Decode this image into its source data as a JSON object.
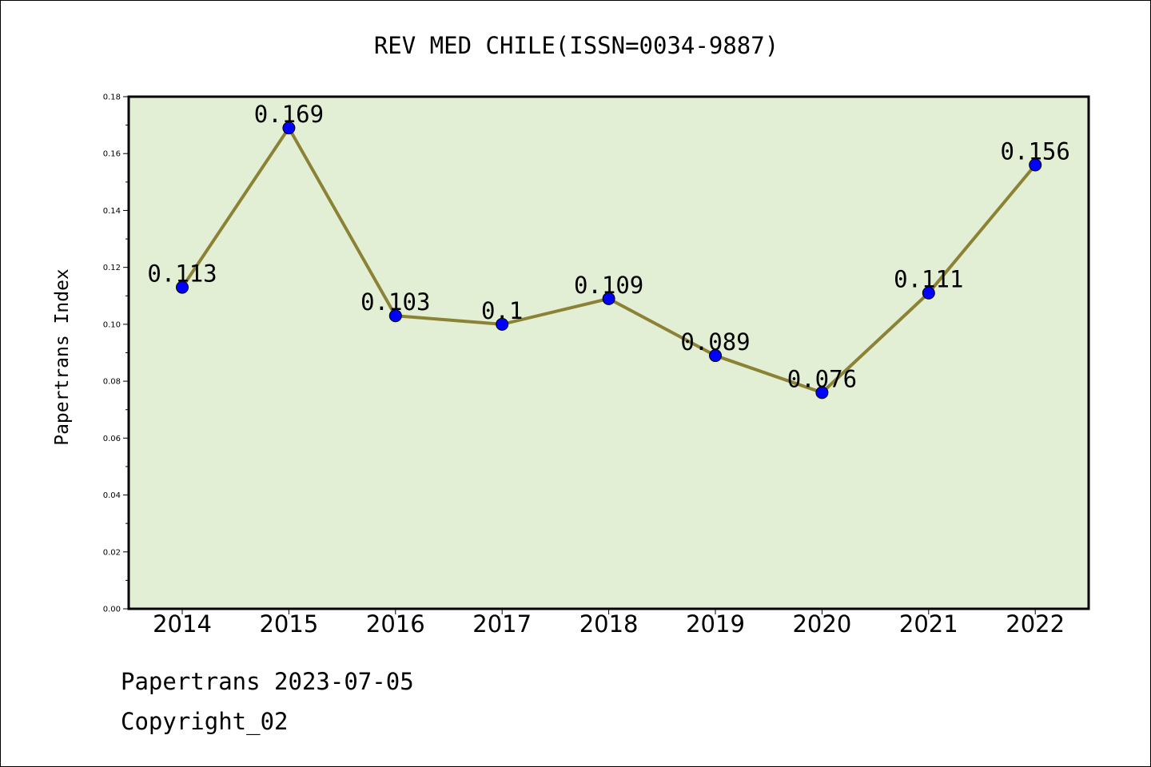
{
  "chart_data": {
    "type": "line",
    "title": "REV MED CHILE(ISSN=0034-9887)",
    "xlabel": "",
    "ylabel": "Papertrans Index",
    "categories": [
      "2014",
      "2015",
      "2016",
      "2017",
      "2018",
      "2019",
      "2020",
      "2021",
      "2022"
    ],
    "series": [
      {
        "values": [
          0.113,
          0.169,
          0.103,
          0.1,
          0.109,
          0.089,
          0.076,
          0.111,
          0.156
        ],
        "labels": [
          "0.113",
          "0.169",
          "0.103",
          "0.1",
          "0.109",
          "0.089",
          "0.076",
          "0.111",
          "0.156"
        ]
      }
    ],
    "ylim": [
      0,
      0.18
    ],
    "yticks": [
      "0.00",
      "0.02",
      "0.04",
      "0.06",
      "0.08",
      "0.10",
      "0.12",
      "0.14",
      "0.16",
      "0.18"
    ],
    "grid": false,
    "colors": {
      "plot_background": "#e2efd4",
      "line": "#8b8235",
      "marker": "#0000ff",
      "axes": "#000000"
    }
  },
  "footer": {
    "line1": "Papertrans 2023-07-05",
    "line2": "Copyright_02"
  }
}
